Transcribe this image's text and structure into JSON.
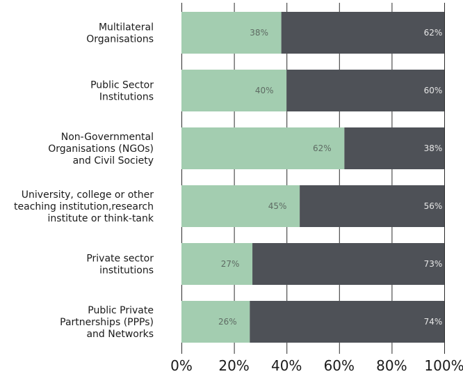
{
  "chart_data": {
    "type": "bar",
    "orientation": "horizontal",
    "stacked": true,
    "categories": [
      [
        "Multilateral",
        "Organisations"
      ],
      [
        "Public Sector",
        "Institutions"
      ],
      [
        "Non-Governmental",
        "Organisations (NGOs)",
        "and Civil Society"
      ],
      [
        "University, college or other",
        "teaching institution,research",
        "institute or think-tank"
      ],
      [
        "Private sector",
        "institutions"
      ],
      [
        "Public Private",
        "Partnerships (PPPs)",
        "and Networks"
      ]
    ],
    "series": [
      {
        "color": "#a3cdb0",
        "label_color": "#5e6b63",
        "values": [
          38,
          40,
          62,
          45,
          27,
          26
        ],
        "labels": [
          "38%",
          "40%",
          "62%",
          "45%",
          "27%",
          "26%"
        ]
      },
      {
        "color": "#4e5157",
        "label_color": "#e6e6e6",
        "values": [
          62,
          60,
          38,
          56,
          73,
          74
        ],
        "labels": [
          "62%",
          "60%",
          "38%",
          "56%",
          "73%",
          "74%"
        ]
      }
    ],
    "xlim": [
      0,
      100
    ],
    "xticks": [
      0,
      20,
      40,
      60,
      80,
      100
    ],
    "xtick_labels": [
      "0%",
      "20%",
      "40%",
      "60%",
      "80%",
      "100%"
    ],
    "grid": true,
    "legend": "none"
  }
}
